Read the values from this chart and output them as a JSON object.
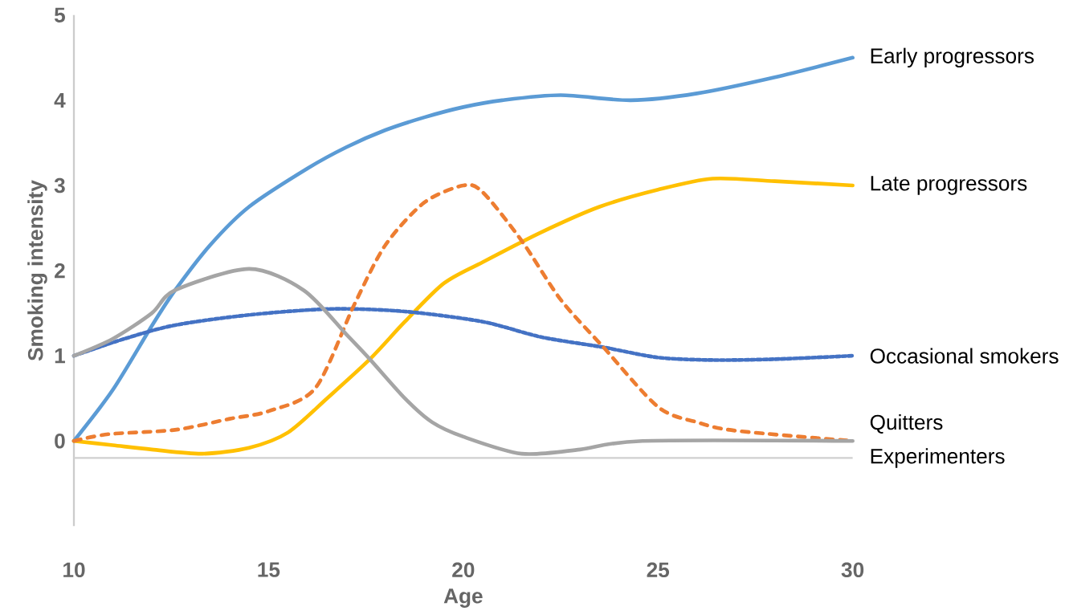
{
  "chart_data": {
    "type": "line",
    "xlabel": "Age",
    "ylabel": "Smoking intensity",
    "xlim": [
      10,
      30
    ],
    "ylim": [
      -1,
      5
    ],
    "xticks": [
      10,
      15,
      20,
      25,
      30
    ],
    "yticks": [
      0,
      1,
      2,
      3,
      4,
      5
    ],
    "ref_lines": [
      {
        "axis": "y",
        "value": -0.2,
        "color": "#d0d0d0"
      }
    ],
    "series": [
      {
        "name": "Early progressors",
        "color": "#5b9bd5",
        "line_style": "solid",
        "x": [
          10,
          11,
          12,
          12.6,
          13.5,
          14.5,
          16,
          17,
          18,
          19,
          20,
          21,
          22.5,
          24.3,
          26,
          28,
          30
        ],
        "values": [
          0,
          0.6,
          1.35,
          1.77,
          2.3,
          2.75,
          3.2,
          3.45,
          3.65,
          3.8,
          3.92,
          4.0,
          4.06,
          4.0,
          4.08,
          4.27,
          4.5
        ]
      },
      {
        "name": "Late progressors",
        "color": "#ffc000",
        "line_style": "solid",
        "x": [
          10,
          11,
          12,
          13.3,
          14.5,
          15.5,
          16.5,
          17.6,
          18.5,
          19.5,
          20.5,
          22,
          23.5,
          25,
          26.4,
          28,
          30
        ],
        "values": [
          0,
          -0.05,
          -0.1,
          -0.15,
          -0.08,
          0.1,
          0.5,
          0.96,
          1.4,
          1.85,
          2.1,
          2.45,
          2.75,
          2.95,
          3.08,
          3.05,
          3.0
        ]
      },
      {
        "name": "Occasional smokers",
        "color": "#4472c4",
        "line_style": "dotted",
        "x": [
          10,
          11.3,
          12.6,
          14.5,
          16.6,
          18.5,
          20.5,
          22,
          23.6,
          25,
          26.4,
          28,
          30
        ],
        "values": [
          1.0,
          1.2,
          1.36,
          1.48,
          1.55,
          1.52,
          1.4,
          1.22,
          1.1,
          0.98,
          0.95,
          0.96,
          1.0
        ]
      },
      {
        "name": "Quitters",
        "color": "#ed7d31",
        "line_style": "dashed",
        "x": [
          10,
          10.9,
          12.6,
          14,
          15,
          16.2,
          17.2,
          18,
          19,
          20,
          20.5,
          21.5,
          22.5,
          23.6,
          25,
          26,
          27,
          30
        ],
        "values": [
          0,
          0.08,
          0.13,
          0.26,
          0.35,
          0.62,
          1.6,
          2.3,
          2.8,
          3.0,
          2.92,
          2.35,
          1.66,
          1.1,
          0.4,
          0.22,
          0.12,
          0
        ]
      },
      {
        "name": "Experimenters",
        "color": "#a5a5a5",
        "line_style": "solid",
        "x": [
          10,
          11,
          12,
          12.6,
          14.5,
          15.9,
          17,
          17.6,
          18.5,
          19.2,
          20,
          21.5,
          23,
          24.6,
          30
        ],
        "values": [
          1.0,
          1.2,
          1.5,
          1.77,
          2.02,
          1.77,
          1.25,
          0.96,
          0.5,
          0.22,
          0.05,
          -0.15,
          -0.1,
          0.0,
          0.0
        ]
      }
    ]
  }
}
